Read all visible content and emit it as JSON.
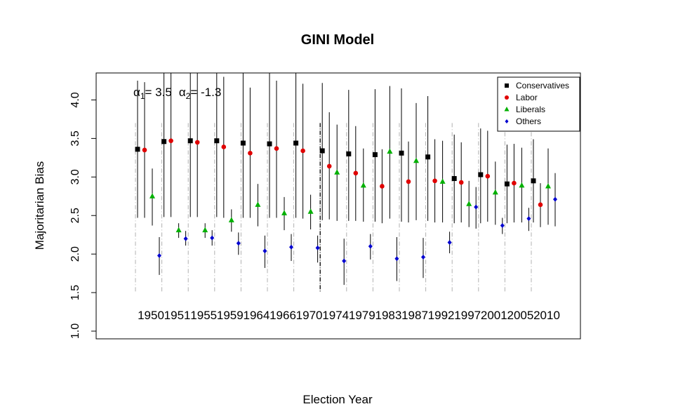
{
  "chart_data": {
    "type": "scatter",
    "title": "GINI Model",
    "xlabel": "Election Year",
    "ylabel": "Majoritarian Bias",
    "ylim": [
      0.9,
      4.35
    ],
    "yticks": [
      "1.0",
      "1.5",
      "2.0",
      "2.5",
      "3.0",
      "3.5",
      "4.0"
    ],
    "categories": [
      "1950",
      "1951",
      "1955",
      "1959",
      "1964",
      "1966",
      "1970",
      "1974",
      "1979",
      "1983",
      "1987",
      "1992",
      "1997",
      "2001",
      "2005",
      "2010"
    ],
    "annotation": {
      "alpha1_symbol": "α",
      "alpha1_sub": "1",
      "alpha1_value": "= 3.5",
      "alpha2_symbol": "α",
      "alpha2_sub": "2",
      "alpha2_value": "= -1.3"
    },
    "legend_position": "top-right",
    "grid": false,
    "series": [
      {
        "name": "Conservatives",
        "color": "#000000",
        "marker": "square",
        "values": [
          3.36,
          3.46,
          3.47,
          3.47,
          3.44,
          3.43,
          3.44,
          3.34,
          3.3,
          3.29,
          3.31,
          3.26,
          2.98,
          3.03,
          2.91,
          2.95
        ],
        "lower": [
          2.47,
          2.48,
          2.48,
          2.48,
          2.47,
          2.47,
          2.47,
          2.44,
          2.43,
          2.42,
          2.42,
          2.43,
          2.4,
          2.4,
          2.4,
          2.41
        ],
        "upper": [
          4.25,
          4.35,
          4.35,
          4.35,
          4.35,
          4.35,
          4.35,
          4.22,
          4.13,
          4.14,
          4.15,
          4.05,
          3.55,
          3.63,
          3.42,
          3.49
        ]
      },
      {
        "name": "Labor",
        "color": "#e00000",
        "marker": "circle",
        "values": [
          3.35,
          3.47,
          3.45,
          3.39,
          3.31,
          3.37,
          3.34,
          3.14,
          3.05,
          2.88,
          2.94,
          2.95,
          2.93,
          3.01,
          2.92,
          2.64
        ],
        "lower": [
          2.47,
          2.48,
          2.48,
          2.47,
          2.47,
          2.47,
          2.46,
          2.45,
          2.43,
          2.4,
          2.41,
          2.41,
          2.41,
          2.42,
          2.41,
          2.35
        ],
        "upper": [
          4.23,
          4.35,
          4.35,
          4.3,
          4.16,
          4.25,
          4.21,
          3.84,
          3.66,
          3.36,
          3.46,
          3.49,
          3.45,
          3.6,
          3.43,
          2.92
        ]
      },
      {
        "name": "Liberals",
        "color": "#00b000",
        "marker": "triangle",
        "values": [
          2.75,
          2.31,
          2.31,
          2.44,
          2.64,
          2.53,
          2.55,
          3.06,
          2.89,
          3.33,
          3.21,
          2.94,
          2.65,
          2.8,
          2.89,
          2.88
        ],
        "lower": [
          2.37,
          2.21,
          2.21,
          2.29,
          2.36,
          2.31,
          2.32,
          2.43,
          2.42,
          2.46,
          2.44,
          2.41,
          2.35,
          2.38,
          2.41,
          2.38
        ],
        "upper": [
          3.11,
          2.4,
          2.4,
          2.58,
          2.91,
          2.74,
          2.77,
          3.68,
          3.37,
          4.18,
          3.96,
          3.47,
          2.95,
          3.2,
          3.38,
          3.37
        ]
      },
      {
        "name": "Others",
        "color": "#0000d0",
        "marker": "diamond",
        "values": [
          1.98,
          2.2,
          2.21,
          2.14,
          2.04,
          2.09,
          2.08,
          1.91,
          2.1,
          1.94,
          1.96,
          2.15,
          2.61,
          2.37,
          2.46,
          2.71
        ],
        "lower": [
          1.73,
          2.11,
          2.11,
          1.99,
          1.82,
          1.91,
          1.89,
          1.6,
          1.93,
          1.65,
          1.69,
          2.01,
          2.33,
          2.26,
          2.3,
          2.36
        ],
        "upper": [
          2.22,
          2.3,
          2.31,
          2.28,
          2.24,
          2.26,
          2.24,
          2.2,
          2.26,
          2.22,
          2.21,
          2.29,
          2.87,
          2.47,
          2.6,
          3.05
        ]
      }
    ]
  }
}
